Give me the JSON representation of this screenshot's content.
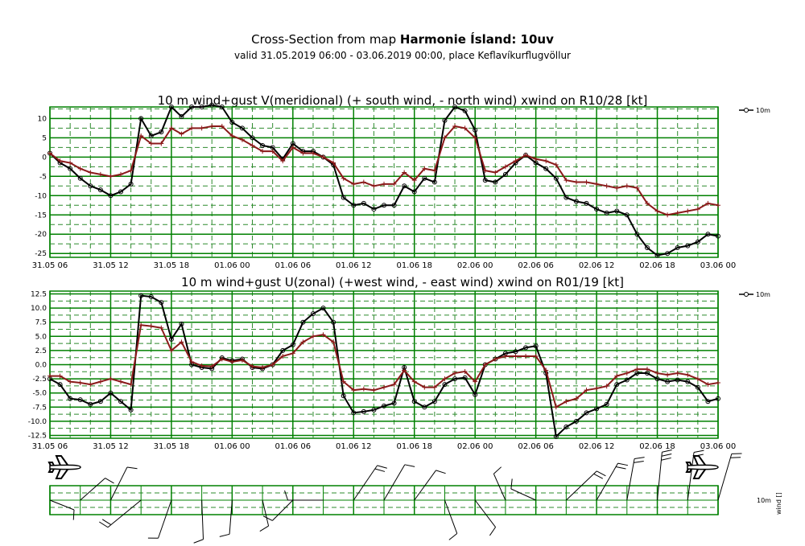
{
  "header": {
    "title_prefix": "Cross-Section from map ",
    "title_bold": "Harmonie Ísland: 10uv",
    "subtitle": "valid 31.05.2019 06:00 - 03.06.2019 00:00, place Keflavíkurflugvöllur"
  },
  "colors": {
    "wind": "#000000",
    "gust": "#8b1a1a",
    "grid": "#008000",
    "gridDash": "#2e8b2e"
  },
  "time_labels": [
    "31.05 06",
    "31.05 12",
    "31.05 18",
    "01.06 00",
    "01.06 06",
    "01.06 12",
    "01.06 18",
    "02.06 00",
    "02.06 06",
    "02.06 12",
    "02.06 18",
    "03.06 00"
  ],
  "chart_data": [
    {
      "type": "line",
      "title": "10 m wind+gust V(meridional) (+ south wind, - north wind) xwind on R10/28 [kt]",
      "x_hours_from_start": [
        0,
        1,
        2,
        3,
        4,
        5,
        6,
        7,
        8,
        9,
        10,
        11,
        12,
        13,
        14,
        15,
        16,
        17,
        18,
        19,
        20,
        21,
        22,
        23,
        24,
        25,
        26,
        27,
        28,
        29,
        30,
        31,
        32,
        33,
        34,
        35,
        36,
        37,
        38,
        39,
        40,
        41,
        42,
        43,
        44,
        45,
        46,
        47,
        48,
        49,
        50,
        51,
        52,
        53,
        54,
        55,
        56,
        57,
        58,
        59,
        60,
        61,
        62,
        63,
        64,
        65,
        66
      ],
      "ylim": [
        -26,
        13
      ],
      "yticks": [
        10,
        5,
        0,
        -5,
        -10,
        -15,
        -20,
        -25
      ],
      "legend": [
        "10m"
      ],
      "series": [
        {
          "name": "10m",
          "values": [
            1,
            -1.5,
            -3,
            -5.5,
            -7.5,
            -8.5,
            -10,
            -9,
            -7,
            10,
            5.5,
            6.5,
            13,
            10.5,
            13,
            13,
            13.5,
            13,
            9,
            7.5,
            5,
            3,
            2.5,
            -0.5,
            3.5,
            1.5,
            1.5,
            0,
            -2,
            -10.5,
            -12.5,
            -12,
            -13.5,
            -12.5,
            -12.5,
            -7.5,
            -9,
            -5.5,
            -6.5,
            9.5,
            13,
            12,
            7,
            -6,
            -6.5,
            -4.5,
            -1.5,
            0.5,
            -1.5,
            -3,
            -5.5,
            -10.5,
            -11.5,
            -12,
            -13.5,
            -14.5,
            -14,
            -15,
            -20,
            -23.5,
            -25.5,
            -25,
            -23.5,
            -23,
            -22,
            -20,
            -20.5
          ]
        },
        {
          "name": "gust",
          "values": [
            1,
            -1,
            -1.5,
            -3,
            -4,
            -4.5,
            -5,
            -4.5,
            -3.5,
            5.5,
            3.5,
            3.5,
            7.5,
            6,
            7.5,
            7.5,
            8,
            8,
            5.5,
            4.5,
            3,
            1.5,
            1.5,
            -1,
            2.5,
            1,
            1,
            0,
            -1.5,
            -5.5,
            -7,
            -6.5,
            -7.5,
            -7,
            -7,
            -4,
            -6,
            -3,
            -3.5,
            5,
            8,
            7.5,
            5,
            -3.5,
            -4,
            -2.5,
            -1,
            0.5,
            -0.5,
            -1,
            -2,
            -6,
            -6.5,
            -6.5,
            -7,
            -7.5,
            -8,
            -7.5,
            -8,
            -12,
            -14,
            -15,
            -14.5,
            -14,
            -13.5,
            -12,
            -12.5
          ]
        }
      ]
    },
    {
      "type": "line",
      "title": "10 m wind+gust U(zonal) (+west wind, - east wind) xwind on R01/19 [kt]",
      "x_hours_from_start": [
        0,
        1,
        2,
        3,
        4,
        5,
        6,
        7,
        8,
        9,
        10,
        11,
        12,
        13,
        14,
        15,
        16,
        17,
        18,
        19,
        20,
        21,
        22,
        23,
        24,
        25,
        26,
        27,
        28,
        29,
        30,
        31,
        32,
        33,
        34,
        35,
        36,
        37,
        38,
        39,
        40,
        41,
        42,
        43,
        44,
        45,
        46,
        47,
        48,
        49,
        50,
        51,
        52,
        53,
        54,
        55,
        56,
        57,
        58,
        59,
        60,
        61,
        62,
        63,
        64,
        65,
        66
      ],
      "ylim": [
        -13,
        13
      ],
      "yticks": [
        12.5,
        10.0,
        7.5,
        5.0,
        2.5,
        0.0,
        -2.5,
        -5.0,
        -7.5,
        -10.0,
        -12.5
      ],
      "legend": [
        "10m"
      ],
      "series": [
        {
          "name": "10m",
          "values": [
            -2.5,
            -3.5,
            -6,
            -6.2,
            -7,
            -6.5,
            -5,
            -6.5,
            -8,
            12.2,
            12,
            11,
            4.5,
            7.2,
            0,
            -0.5,
            -0.7,
            1.2,
            0.7,
            1,
            -0.5,
            -0.7,
            0,
            2.5,
            3.5,
            7.5,
            9,
            10,
            7.5,
            -5.5,
            -8.5,
            -8.3,
            -8,
            -7.3,
            -6.8,
            -0.5,
            -6.5,
            -7.5,
            -6.5,
            -3.5,
            -2.5,
            -2.3,
            -5.3,
            0,
            1,
            2,
            2.3,
            3,
            3.3,
            -1.5,
            -12.7,
            -11,
            -10,
            -8.5,
            -7.8,
            -7,
            -3.5,
            -2.7,
            -1.5,
            -1.5,
            -2.5,
            -3,
            -2.7,
            -3,
            -4,
            -6.5,
            -6
          ]
        },
        {
          "name": "gust",
          "values": [
            -2,
            -2,
            -3,
            -3.2,
            -3.5,
            -3,
            -2.5,
            -3,
            -3.5,
            7,
            6.8,
            6.5,
            2.5,
            4,
            0.5,
            -0.2,
            -0.3,
            1,
            0.5,
            0.8,
            -0.3,
            -0.5,
            0,
            1.5,
            2,
            4,
            5,
            5.3,
            4,
            -3,
            -4.5,
            -4.3,
            -4.5,
            -4,
            -3.5,
            -1,
            -3,
            -4,
            -4,
            -2.5,
            -1.5,
            -1.2,
            -3,
            0,
            1,
            1.5,
            1.5,
            1.5,
            1.5,
            -1,
            -7.5,
            -6.5,
            -6,
            -4.5,
            -4.2,
            -3.8,
            -2,
            -1.5,
            -0.8,
            -0.8,
            -1.5,
            -1.8,
            -1.5,
            -1.8,
            -2.5,
            -3.5,
            -3.2
          ]
        }
      ]
    }
  ],
  "wind_strip": {
    "legend_label": "10m",
    "axis_label": "wind []",
    "icon": "airplane-icon"
  }
}
